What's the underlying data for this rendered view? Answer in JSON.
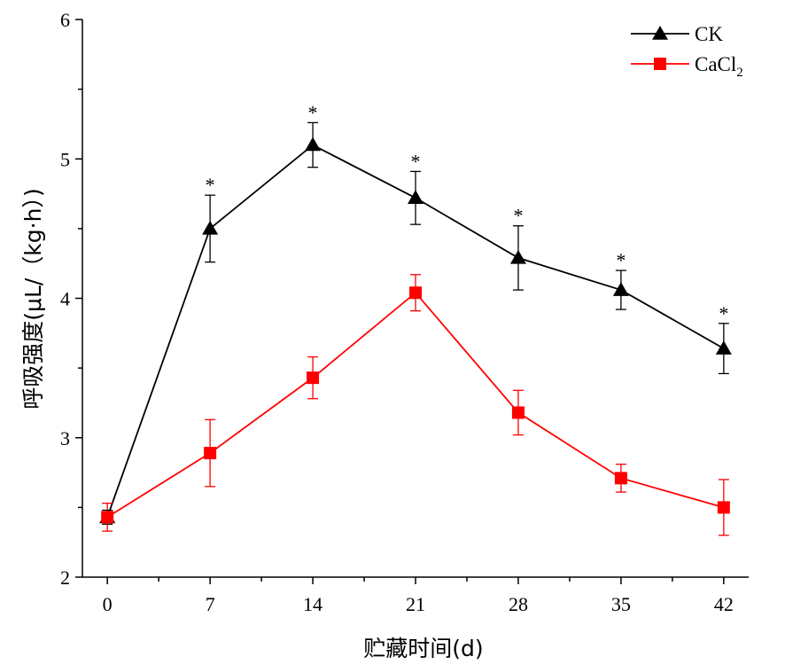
{
  "chart_data": {
    "type": "line",
    "xlabel": "贮藏时间(d)",
    "ylabel": "呼吸强度(μL/（kg·h）)",
    "x": [
      0,
      7,
      14,
      21,
      28,
      35,
      42
    ],
    "x_ticks": [
      "0",
      "7",
      "14",
      "21",
      "28",
      "35",
      "42"
    ],
    "xlim": [
      -1.7,
      43.7
    ],
    "ylim": [
      2,
      6
    ],
    "y_ticks": [
      "2",
      "3",
      "4",
      "5",
      "6"
    ],
    "grid": false,
    "legend_position": "top-right",
    "series": [
      {
        "name": "CK",
        "color": "#000000",
        "marker": "triangle",
        "values": [
          2.43,
          4.5,
          5.1,
          4.72,
          4.29,
          4.06,
          3.64
        ],
        "error": [
          0.05,
          0.24,
          0.16,
          0.19,
          0.23,
          0.14,
          0.18
        ],
        "significance": [
          "",
          "*",
          "*",
          "*",
          "*",
          "*",
          "*"
        ]
      },
      {
        "name": "CaCl",
        "name_subscript": "2",
        "color": "#ff0000",
        "marker": "square",
        "values": [
          2.43,
          2.89,
          3.43,
          4.04,
          3.18,
          2.71,
          2.5
        ],
        "error": [
          0.1,
          0.24,
          0.15,
          0.13,
          0.16,
          0.1,
          0.2
        ],
        "significance": [
          "",
          "",
          "",
          "",
          "",
          "",
          ""
        ]
      }
    ]
  }
}
